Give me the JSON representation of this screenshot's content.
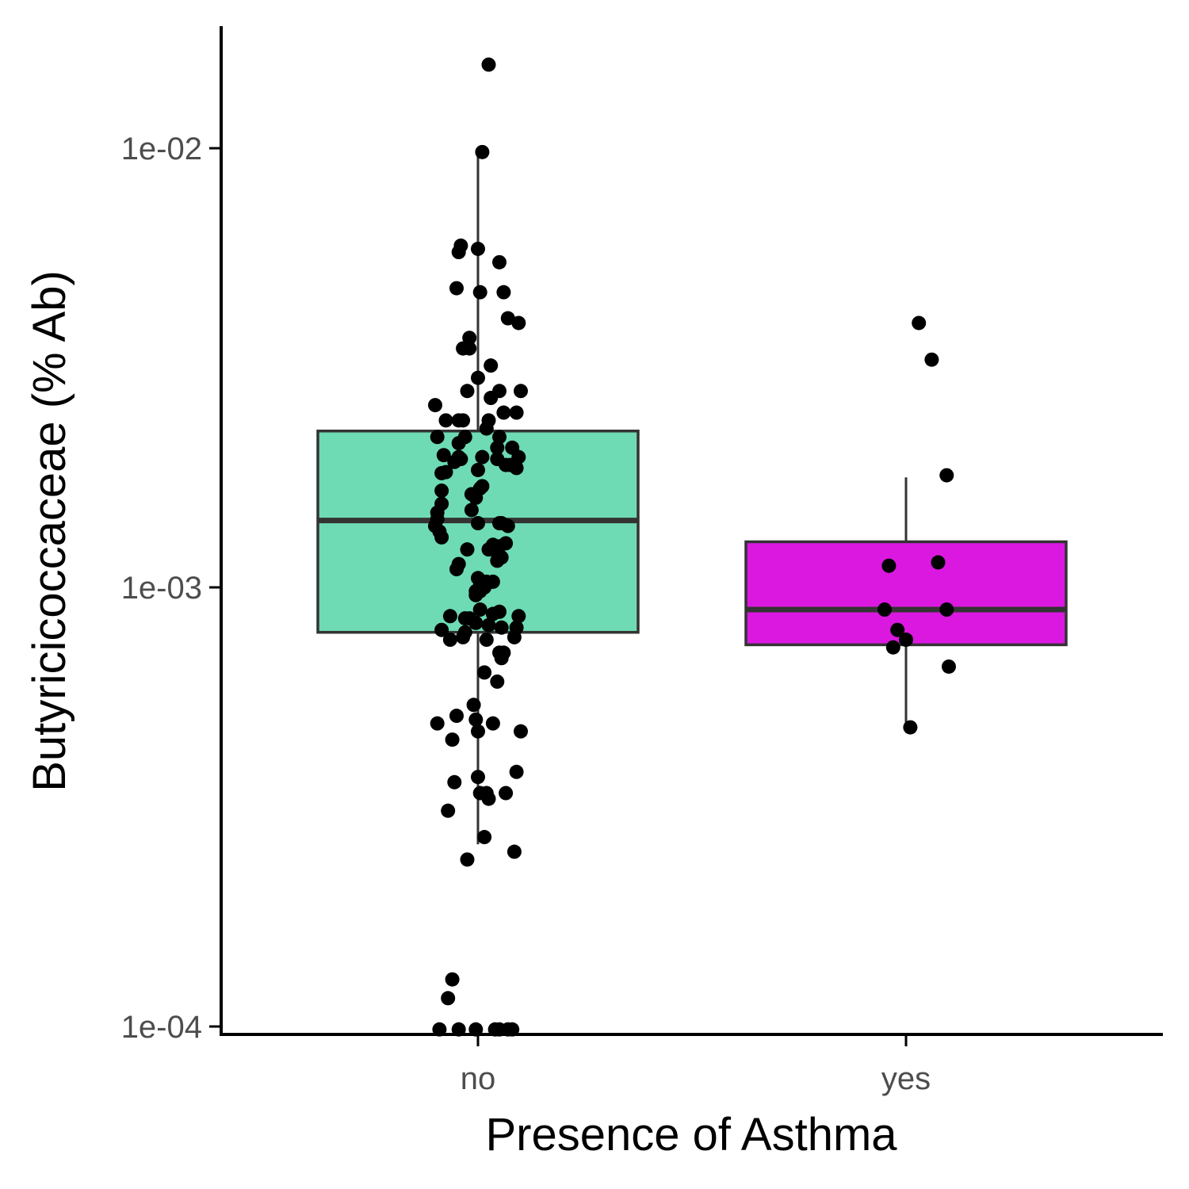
{
  "chart_data": {
    "type": "box",
    "xlabel": "Presence of Asthma",
    "ylabel": "Butyricicoccaceae (% Ab)",
    "y_scale": "log10",
    "ylim": [
      9.85e-05,
      0.0175
    ],
    "y_ticks": [
      {
        "value": 0.01,
        "label": "1e-02"
      },
      {
        "value": 0.001,
        "label": "1e-03"
      },
      {
        "value": 0.0001,
        "label": "1e-04"
      }
    ],
    "categories": [
      "no",
      "yes"
    ],
    "grid": false,
    "legend": "none",
    "boxes": [
      {
        "category": "no",
        "fill": "#6edbb4",
        "whisker_low": 0.00026,
        "q1": 0.00079,
        "median": 0.00142,
        "q3": 0.00227,
        "whisker_high": 0.0097
      },
      {
        "category": "yes",
        "fill": "#db18e0",
        "whisker_low": 0.00048,
        "q1": 0.00074,
        "median": 0.00089,
        "q3": 0.00127,
        "whisker_high": 0.00178
      }
    ],
    "points": [
      {
        "category": "no",
        "jitter": 0.05,
        "y": 0.0155
      },
      {
        "category": "no",
        "jitter": 0.02,
        "y": 0.0098
      },
      {
        "category": "no",
        "jitter": -0.08,
        "y": 0.006
      },
      {
        "category": "no",
        "jitter": -0.09,
        "y": 0.0058
      },
      {
        "category": "no",
        "jitter": 0.0,
        "y": 0.0059
      },
      {
        "category": "no",
        "jitter": 0.1,
        "y": 0.0055
      },
      {
        "category": "no",
        "jitter": -0.1,
        "y": 0.0048
      },
      {
        "category": "no",
        "jitter": 0.01,
        "y": 0.0047
      },
      {
        "category": "no",
        "jitter": 0.12,
        "y": 0.0047
      },
      {
        "category": "no",
        "jitter": 0.14,
        "y": 0.0041
      },
      {
        "category": "no",
        "jitter": 0.19,
        "y": 0.004
      },
      {
        "category": "no",
        "jitter": -0.04,
        "y": 0.0037
      },
      {
        "category": "no",
        "jitter": -0.07,
        "y": 0.0035
      },
      {
        "category": "no",
        "jitter": -0.04,
        "y": 0.0035
      },
      {
        "category": "no",
        "jitter": 0.06,
        "y": 0.0032
      },
      {
        "category": "no",
        "jitter": 0.0,
        "y": 0.003
      },
      {
        "category": "no",
        "jitter": 0.2,
        "y": 0.0028
      },
      {
        "category": "no",
        "jitter": -0.05,
        "y": 0.0028
      },
      {
        "category": "no",
        "jitter": 0.1,
        "y": 0.0028
      },
      {
        "category": "no",
        "jitter": 0.06,
        "y": 0.0027
      },
      {
        "category": "no",
        "jitter": -0.2,
        "y": 0.0026
      },
      {
        "category": "no",
        "jitter": 0.18,
        "y": 0.0025
      },
      {
        "category": "no",
        "jitter": 0.12,
        "y": 0.0025
      },
      {
        "category": "no",
        "jitter": -0.15,
        "y": 0.0024
      },
      {
        "category": "no",
        "jitter": -0.09,
        "y": 0.0024
      },
      {
        "category": "no",
        "jitter": -0.07,
        "y": 0.0024
      },
      {
        "category": "no",
        "jitter": 0.05,
        "y": 0.0024
      },
      {
        "category": "no",
        "jitter": 0.04,
        "y": 0.0023
      },
      {
        "category": "no",
        "jitter": -0.19,
        "y": 0.0022
      },
      {
        "category": "no",
        "jitter": -0.06,
        "y": 0.0022
      },
      {
        "category": "no",
        "jitter": 0.1,
        "y": 0.0022
      },
      {
        "category": "no",
        "jitter": -0.09,
        "y": 0.00213
      },
      {
        "category": "no",
        "jitter": 0.09,
        "y": 0.00208
      },
      {
        "category": "no",
        "jitter": 0.16,
        "y": 0.00208
      },
      {
        "category": "no",
        "jitter": -0.16,
        "y": 0.002
      },
      {
        "category": "no",
        "jitter": -0.09,
        "y": 0.00198
      },
      {
        "category": "no",
        "jitter": 0.02,
        "y": 0.00198
      },
      {
        "category": "no",
        "jitter": 0.19,
        "y": 0.00198
      },
      {
        "category": "no",
        "jitter": -0.08,
        "y": 0.00196
      },
      {
        "category": "no",
        "jitter": 0.09,
        "y": 0.00196
      },
      {
        "category": "no",
        "jitter": -0.11,
        "y": 0.00193
      },
      {
        "category": "no",
        "jitter": 0.13,
        "y": 0.0019
      },
      {
        "category": "no",
        "jitter": 0.15,
        "y": 0.0019
      },
      {
        "category": "no",
        "jitter": 0.18,
        "y": 0.00187
      },
      {
        "category": "no",
        "jitter": 0.0,
        "y": 0.00185
      },
      {
        "category": "no",
        "jitter": -0.17,
        "y": 0.00182
      },
      {
        "category": "no",
        "jitter": -0.15,
        "y": 0.00183
      },
      {
        "category": "no",
        "jitter": 0.02,
        "y": 0.0017
      },
      {
        "category": "no",
        "jitter": 0.01,
        "y": 0.00168
      },
      {
        "category": "no",
        "jitter": -0.17,
        "y": 0.00166
      },
      {
        "category": "no",
        "jitter": -0.03,
        "y": 0.00163
      },
      {
        "category": "no",
        "jitter": -0.01,
        "y": 0.0016
      },
      {
        "category": "no",
        "jitter": -0.17,
        "y": 0.00155
      },
      {
        "category": "no",
        "jitter": -0.03,
        "y": 0.0015
      },
      {
        "category": "no",
        "jitter": -0.19,
        "y": 0.00148
      },
      {
        "category": "no",
        "jitter": -0.19,
        "y": 0.00143
      },
      {
        "category": "no",
        "jitter": 0.0,
        "y": 0.0014
      },
      {
        "category": "no",
        "jitter": 0.1,
        "y": 0.0014
      },
      {
        "category": "no",
        "jitter": 0.11,
        "y": 0.0014
      },
      {
        "category": "no",
        "jitter": 0.14,
        "y": 0.00138
      },
      {
        "category": "no",
        "jitter": -0.2,
        "y": 0.00138
      },
      {
        "category": "no",
        "jitter": -0.18,
        "y": 0.00134
      },
      {
        "category": "no",
        "jitter": -0.17,
        "y": 0.0013
      },
      {
        "category": "no",
        "jitter": 0.13,
        "y": 0.00126
      },
      {
        "category": "no",
        "jitter": 0.07,
        "y": 0.00125
      },
      {
        "category": "no",
        "jitter": 0.1,
        "y": 0.00124
      },
      {
        "category": "no",
        "jitter": 0.05,
        "y": 0.00122
      },
      {
        "category": "no",
        "jitter": -0.05,
        "y": 0.00122
      },
      {
        "category": "no",
        "jitter": 0.09,
        "y": 0.0012
      },
      {
        "category": "no",
        "jitter": 0.11,
        "y": 0.00117
      },
      {
        "category": "no",
        "jitter": 0.09,
        "y": 0.00115
      },
      {
        "category": "no",
        "jitter": -0.09,
        "y": 0.00113
      },
      {
        "category": "no",
        "jitter": -0.1,
        "y": 0.0011
      },
      {
        "category": "no",
        "jitter": 0.0,
        "y": 0.00105
      },
      {
        "category": "no",
        "jitter": 0.01,
        "y": 0.00101
      },
      {
        "category": "no",
        "jitter": -0.01,
        "y": 0.00098
      },
      {
        "category": "no",
        "jitter": 0.01,
        "y": 0.00098
      },
      {
        "category": "no",
        "jitter": -0.01,
        "y": 0.00096
      },
      {
        "category": "no",
        "jitter": 0.07,
        "y": 0.00103
      },
      {
        "category": "no",
        "jitter": 0.04,
        "y": 0.00103
      },
      {
        "category": "no",
        "jitter": 0.02,
        "y": 0.001
      },
      {
        "category": "no",
        "jitter": 0.03,
        "y": 0.001
      },
      {
        "category": "no",
        "jitter": 0.01,
        "y": 0.00089
      },
      {
        "category": "no",
        "jitter": 0.1,
        "y": 0.00088
      },
      {
        "category": "no",
        "jitter": 0.07,
        "y": 0.00087
      },
      {
        "category": "no",
        "jitter": 0.19,
        "y": 0.00086
      },
      {
        "category": "no",
        "jitter": -0.13,
        "y": 0.00086
      },
      {
        "category": "no",
        "jitter": -0.06,
        "y": 0.00085
      },
      {
        "category": "no",
        "jitter": -0.04,
        "y": 0.00085
      },
      {
        "category": "no",
        "jitter": -0.01,
        "y": 0.00083
      },
      {
        "category": "no",
        "jitter": 0.05,
        "y": 0.00082
      },
      {
        "category": "no",
        "jitter": 0.11,
        "y": 0.00081
      },
      {
        "category": "no",
        "jitter": 0.18,
        "y": 0.00081
      },
      {
        "category": "no",
        "jitter": -0.17,
        "y": 0.0008
      },
      {
        "category": "no",
        "jitter": -0.06,
        "y": 0.00079
      },
      {
        "category": "no",
        "jitter": -0.07,
        "y": 0.00077
      },
      {
        "category": "no",
        "jitter": -0.13,
        "y": 0.00076
      },
      {
        "category": "no",
        "jitter": 0.17,
        "y": 0.00077
      },
      {
        "category": "no",
        "jitter": 0.04,
        "y": 0.00076
      },
      {
        "category": "no",
        "jitter": 0.1,
        "y": 0.00071
      },
      {
        "category": "no",
        "jitter": 0.12,
        "y": 0.00071
      },
      {
        "category": "no",
        "jitter": 0.11,
        "y": 0.00069
      },
      {
        "category": "no",
        "jitter": 0.03,
        "y": 0.00064
      },
      {
        "category": "no",
        "jitter": 0.09,
        "y": 0.00061
      },
      {
        "category": "no",
        "jitter": -0.02,
        "y": 0.00054
      },
      {
        "category": "no",
        "jitter": -0.1,
        "y": 0.00051
      },
      {
        "category": "no",
        "jitter": -0.01,
        "y": 0.0005
      },
      {
        "category": "no",
        "jitter": 0.07,
        "y": 0.00049
      },
      {
        "category": "no",
        "jitter": -0.19,
        "y": 0.00049
      },
      {
        "category": "no",
        "jitter": 0.0,
        "y": 0.00047
      },
      {
        "category": "no",
        "jitter": 0.2,
        "y": 0.00047
      },
      {
        "category": "no",
        "jitter": -0.12,
        "y": 0.00045
      },
      {
        "category": "no",
        "jitter": 0.18,
        "y": 0.00038
      },
      {
        "category": "no",
        "jitter": 0.0,
        "y": 0.00037
      },
      {
        "category": "no",
        "jitter": -0.11,
        "y": 0.00036
      },
      {
        "category": "no",
        "jitter": 0.13,
        "y": 0.00034
      },
      {
        "category": "no",
        "jitter": 0.04,
        "y": 0.00034
      },
      {
        "category": "no",
        "jitter": 0.01,
        "y": 0.00034
      },
      {
        "category": "no",
        "jitter": 0.05,
        "y": 0.00033
      },
      {
        "category": "no",
        "jitter": -0.14,
        "y": 0.00031
      },
      {
        "category": "no",
        "jitter": 0.03,
        "y": 0.00027
      },
      {
        "category": "no",
        "jitter": 0.17,
        "y": 0.00025
      },
      {
        "category": "no",
        "jitter": -0.05,
        "y": 0.00024
      },
      {
        "category": "no",
        "jitter": -0.12,
        "y": 0.000128
      },
      {
        "category": "no",
        "jitter": -0.14,
        "y": 0.000116
      },
      {
        "category": "no",
        "jitter": -0.18,
        "y": 9.85e-05
      },
      {
        "category": "no",
        "jitter": -0.09,
        "y": 9.85e-05
      },
      {
        "category": "no",
        "jitter": -0.01,
        "y": 9.85e-05
      },
      {
        "category": "no",
        "jitter": 0.08,
        "y": 9.85e-05
      },
      {
        "category": "no",
        "jitter": 0.1,
        "y": 9.85e-05
      },
      {
        "category": "no",
        "jitter": 0.14,
        "y": 9.85e-05
      },
      {
        "category": "no",
        "jitter": 0.16,
        "y": 9.85e-05
      },
      {
        "category": "yes",
        "jitter": 0.06,
        "y": 0.004
      },
      {
        "category": "yes",
        "jitter": 0.12,
        "y": 0.0033
      },
      {
        "category": "yes",
        "jitter": 0.19,
        "y": 0.0018
      },
      {
        "category": "yes",
        "jitter": 0.15,
        "y": 0.00114
      },
      {
        "category": "yes",
        "jitter": -0.08,
        "y": 0.00112
      },
      {
        "category": "yes",
        "jitter": -0.1,
        "y": 0.00089
      },
      {
        "category": "yes",
        "jitter": 0.19,
        "y": 0.00089
      },
      {
        "category": "yes",
        "jitter": -0.04,
        "y": 0.0008
      },
      {
        "category": "yes",
        "jitter": 0.0,
        "y": 0.00076
      },
      {
        "category": "yes",
        "jitter": -0.06,
        "y": 0.00073
      },
      {
        "category": "yes",
        "jitter": 0.2,
        "y": 0.00066
      },
      {
        "category": "yes",
        "jitter": 0.02,
        "y": 0.00048
      }
    ]
  }
}
